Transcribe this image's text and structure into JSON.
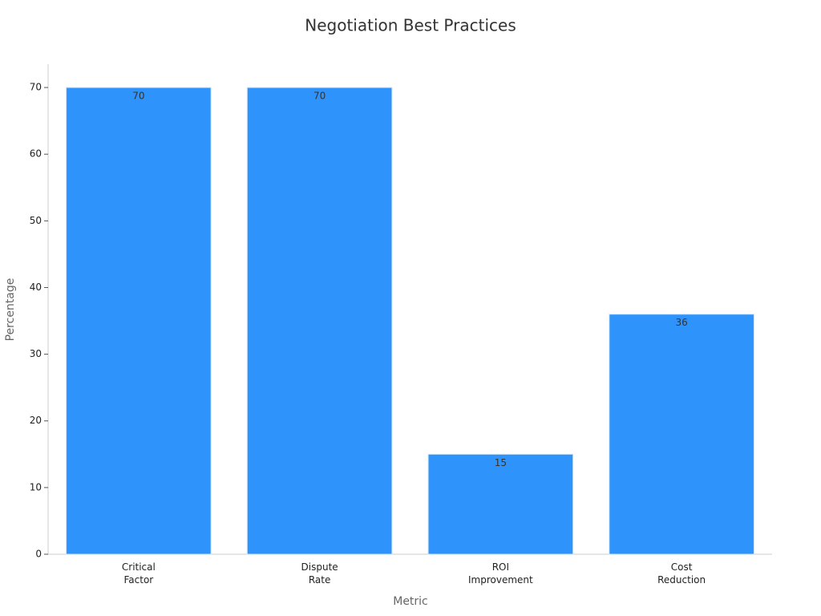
{
  "chart_data": {
    "type": "bar",
    "title": "Negotiation Best Practices",
    "x_label": "Metric",
    "y_label": "Percentage",
    "categories": [
      "Critical\nFactor",
      "Dispute\nRate",
      "ROI\nImprovement",
      "Cost\nReduction"
    ],
    "values": [
      70,
      70,
      15,
      36
    ],
    "color": "#2e93fa",
    "ylim": [
      0,
      73.5
    ],
    "yticks": [
      0,
      10,
      20,
      30,
      40,
      50,
      60,
      70
    ],
    "grid": false
  }
}
